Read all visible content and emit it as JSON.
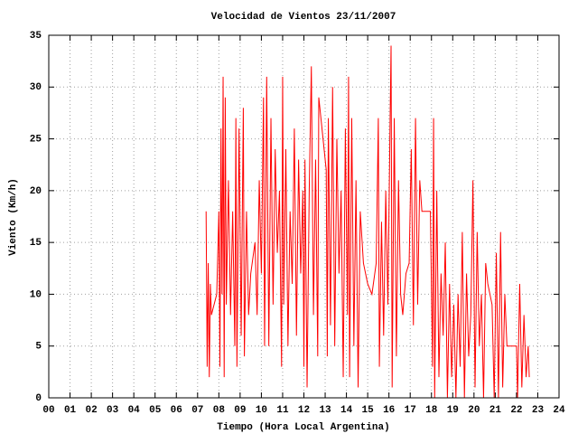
{
  "chart_data": {
    "type": "line",
    "title": "Velocidad de Vientos 23/11/2007",
    "xlabel": "Tiempo (Hora Local Argentina)",
    "ylabel": "Viento (Km/h)",
    "color": "#ff0000",
    "grid": true,
    "xlim": [
      0,
      24
    ],
    "ylim": [
      0,
      35
    ],
    "xticks": [
      {
        "value": 0,
        "label": "00"
      },
      {
        "value": 1,
        "label": "01"
      },
      {
        "value": 2,
        "label": "02"
      },
      {
        "value": 3,
        "label": "03"
      },
      {
        "value": 4,
        "label": "04"
      },
      {
        "value": 5,
        "label": "05"
      },
      {
        "value": 6,
        "label": "06"
      },
      {
        "value": 7,
        "label": "07"
      },
      {
        "value": 8,
        "label": "08"
      },
      {
        "value": 9,
        "label": "09"
      },
      {
        "value": 10,
        "label": "10"
      },
      {
        "value": 11,
        "label": "11"
      },
      {
        "value": 12,
        "label": "12"
      },
      {
        "value": 13,
        "label": "13"
      },
      {
        "value": 14,
        "label": "14"
      },
      {
        "value": 15,
        "label": "15"
      },
      {
        "value": 16,
        "label": "16"
      },
      {
        "value": 17,
        "label": "17"
      },
      {
        "value": 18,
        "label": "18"
      },
      {
        "value": 19,
        "label": "19"
      },
      {
        "value": 20,
        "label": "20"
      },
      {
        "value": 21,
        "label": "21"
      },
      {
        "value": 22,
        "label": "22"
      },
      {
        "value": 23,
        "label": "23"
      },
      {
        "value": 24,
        "label": "24"
      }
    ],
    "yticks": [
      0,
      5,
      10,
      15,
      20,
      25,
      30,
      35
    ],
    "x": [
      7.4,
      7.45,
      7.5,
      7.55,
      7.6,
      7.65,
      7.9,
      8.0,
      8.05,
      8.1,
      8.15,
      8.2,
      8.25,
      8.3,
      8.35,
      8.45,
      8.55,
      8.65,
      8.75,
      8.8,
      8.85,
      8.95,
      9.05,
      9.15,
      9.2,
      9.3,
      9.4,
      9.5,
      9.7,
      9.8,
      9.9,
      10.0,
      10.1,
      10.15,
      10.25,
      10.35,
      10.45,
      10.55,
      10.65,
      10.75,
      10.85,
      10.95,
      11.0,
      11.05,
      11.15,
      11.25,
      11.35,
      11.45,
      11.55,
      11.65,
      11.75,
      11.85,
      11.95,
      12.0,
      12.05,
      12.15,
      12.25,
      12.35,
      12.45,
      12.55,
      12.65,
      12.7,
      13.05,
      13.1,
      13.15,
      13.25,
      13.35,
      13.45,
      13.55,
      13.65,
      13.75,
      13.85,
      13.95,
      14.05,
      14.1,
      14.15,
      14.25,
      14.35,
      14.45,
      14.55,
      14.65,
      14.8,
      15.0,
      15.2,
      15.4,
      15.5,
      15.55,
      15.65,
      15.75,
      15.85,
      15.95,
      16.05,
      16.1,
      16.15,
      16.25,
      16.35,
      16.45,
      16.55,
      16.65,
      16.8,
      16.95,
      17.05,
      17.15,
      17.25,
      17.35,
      17.45,
      17.55,
      17.95,
      18.05,
      18.1,
      18.15,
      18.25,
      18.35,
      18.45,
      18.55,
      18.65,
      18.75,
      18.85,
      18.95,
      19.05,
      19.15,
      19.25,
      19.35,
      19.45,
      19.55,
      19.65,
      19.75,
      19.85,
      19.95,
      20.05,
      20.15,
      20.25,
      20.35,
      20.45,
      20.55,
      20.65,
      20.85,
      20.95,
      21.05,
      21.15,
      21.25,
      21.35,
      21.45,
      21.55,
      22.0,
      22.05,
      22.15,
      22.25,
      22.35,
      22.45,
      22.55,
      22.6
    ],
    "values": [
      18,
      3,
      13,
      2,
      11,
      8,
      10,
      18,
      3,
      26,
      10,
      31,
      2,
      29,
      9,
      21,
      8,
      18,
      5,
      27,
      3,
      26,
      6,
      28,
      4,
      18,
      8,
      12,
      15,
      8,
      21,
      12,
      29,
      5,
      31,
      5,
      27,
      9,
      24,
      14,
      20,
      3,
      31,
      9,
      24,
      5,
      18,
      11,
      26,
      6,
      23,
      12,
      20,
      3,
      23,
      1,
      20,
      32,
      8,
      23,
      4,
      29,
      22,
      4,
      27,
      7,
      30,
      5,
      25,
      12,
      20,
      2,
      26,
      8,
      31,
      2,
      27,
      5,
      21,
      1,
      18,
      13,
      11,
      10,
      13,
      27,
      3,
      17,
      6,
      20,
      9,
      26,
      34,
      1,
      27,
      4,
      21,
      10,
      8,
      12,
      13,
      24,
      7,
      27,
      9,
      21,
      18,
      18,
      3,
      27,
      0,
      20,
      2,
      12,
      6,
      15,
      0,
      11,
      2,
      9,
      0,
      10,
      3,
      16,
      0,
      12,
      4,
      8,
      21,
      1,
      16,
      5,
      10,
      0,
      13,
      11,
      9,
      0,
      14,
      0,
      16,
      1,
      10,
      5,
      5,
      0,
      11,
      1,
      8,
      2,
      5,
      2
    ]
  }
}
